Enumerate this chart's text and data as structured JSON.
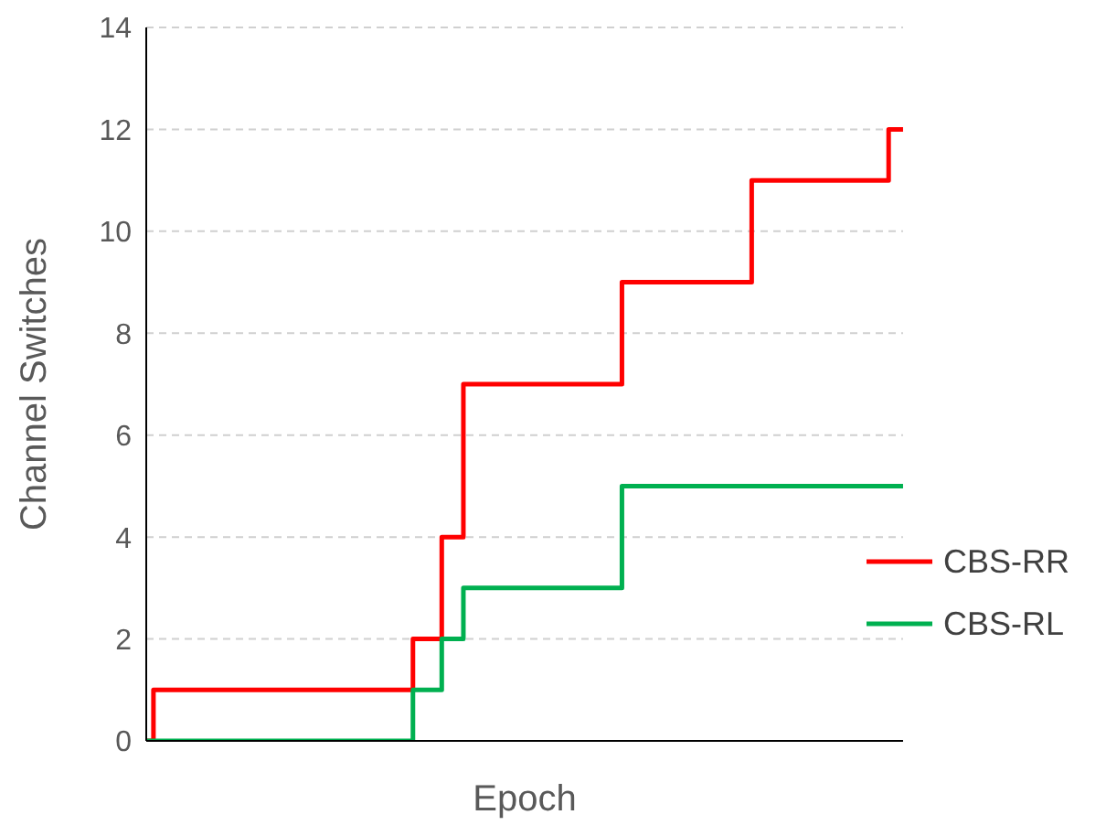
{
  "chart_data": {
    "type": "step",
    "xlabel": "Epoch",
    "ylabel": "Channel Switches",
    "categories": [
      null,
      null,
      null,
      null,
      null,
      null,
      null,
      null,
      null,
      null,
      null,
      null,
      null,
      null,
      null,
      null,
      null,
      null,
      null,
      null,
      null,
      null,
      null,
      null,
      null,
      null,
      null,
      null,
      null,
      null,
      null,
      null,
      null,
      null,
      null,
      null,
      null,
      null,
      null,
      null,
      null,
      null,
      null,
      null,
      null,
      null,
      null,
      null,
      null,
      null,
      null,
      null,
      null,
      null,
      null,
      null,
      null,
      null,
      null,
      null,
      null,
      null,
      null,
      null,
      null,
      null,
      null,
      null,
      null,
      null,
      null,
      null,
      null,
      null,
      null,
      null,
      null,
      null,
      null,
      null,
      null,
      null,
      null,
      null,
      null,
      null,
      null,
      null,
      null,
      null,
      null,
      null,
      null,
      null,
      null,
      null,
      null,
      null,
      null,
      null,
      null,
      null,
      null,
      null,
      null,
      null
    ],
    "series": [
      {
        "name": "CBS-RR",
        "color": "#ff0000",
        "values": [
          0,
          1,
          1,
          1,
          1,
          1,
          1,
          1,
          1,
          1,
          1,
          1,
          1,
          1,
          1,
          1,
          1,
          1,
          1,
          1,
          1,
          1,
          1,
          1,
          1,
          1,
          1,
          1,
          1,
          1,
          1,
          1,
          1,
          1,
          1,
          1,
          1,
          2,
          2,
          2,
          2,
          4,
          4,
          4,
          7,
          7,
          7,
          7,
          7,
          7,
          7,
          7,
          7,
          7,
          7,
          7,
          7,
          7,
          7,
          7,
          7,
          7,
          7,
          7,
          7,
          7,
          9,
          9,
          9,
          9,
          9,
          9,
          9,
          9,
          9,
          9,
          9,
          9,
          9,
          9,
          9,
          9,
          9,
          9,
          11,
          11,
          11,
          11,
          11,
          11,
          11,
          11,
          11,
          11,
          11,
          11,
          11,
          11,
          11,
          11,
          11,
          11,
          11,
          12,
          12,
          12
        ]
      },
      {
        "name": "CBS-RL",
        "color": "#00b050",
        "values": [
          0,
          0,
          0,
          0,
          0,
          0,
          0,
          0,
          0,
          0,
          0,
          0,
          0,
          0,
          0,
          0,
          0,
          0,
          0,
          0,
          0,
          0,
          0,
          0,
          0,
          0,
          0,
          0,
          0,
          0,
          0,
          0,
          0,
          0,
          0,
          0,
          0,
          1,
          1,
          1,
          1,
          2,
          2,
          2,
          3,
          3,
          3,
          3,
          3,
          3,
          3,
          3,
          3,
          3,
          3,
          3,
          3,
          3,
          3,
          3,
          3,
          3,
          3,
          3,
          3,
          3,
          5,
          5,
          5,
          5,
          5,
          5,
          5,
          5,
          5,
          5,
          5,
          5,
          5,
          5,
          5,
          5,
          5,
          5,
          5,
          5,
          5,
          5,
          5,
          5,
          5,
          5,
          5,
          5,
          5,
          5,
          5,
          5,
          5,
          5,
          5,
          5,
          5,
          5,
          5,
          5
        ]
      }
    ],
    "ylim": [
      0,
      14
    ],
    "yticks": [
      0,
      2,
      4,
      6,
      8,
      10,
      12,
      14
    ],
    "grid": "y",
    "legend": "bottom right",
    "marker": "none",
    "line_style": "solid"
  }
}
